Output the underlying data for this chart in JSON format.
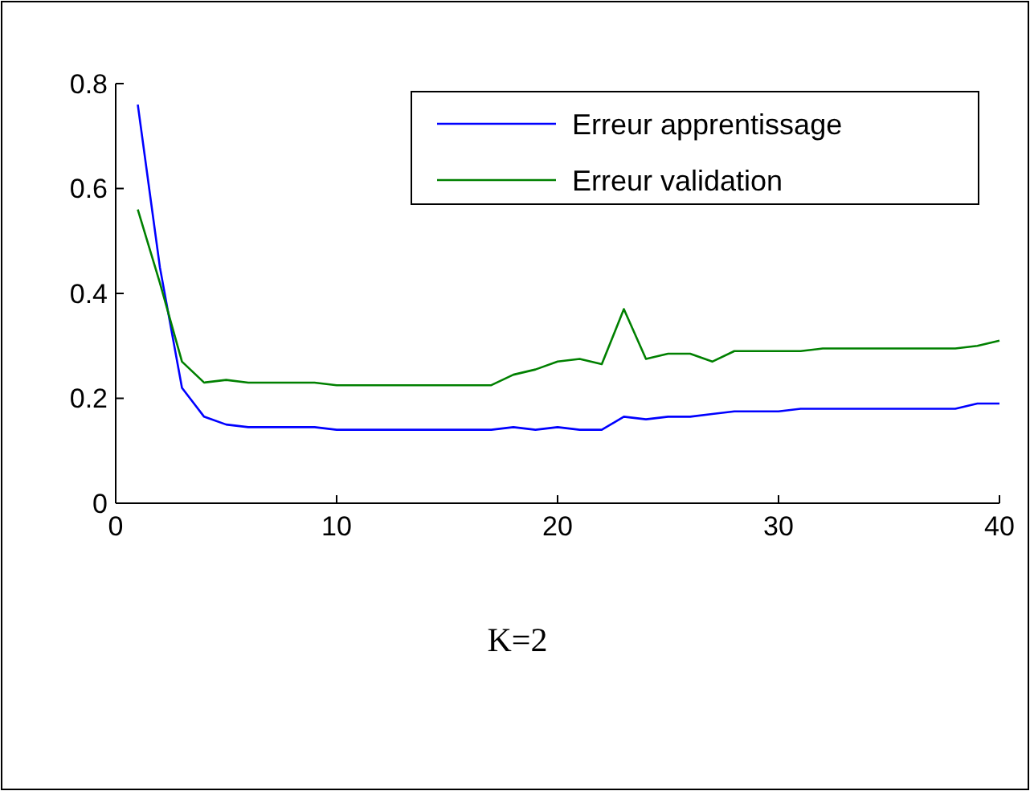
{
  "chart_data": {
    "type": "line",
    "x": [
      1,
      2,
      3,
      4,
      5,
      6,
      7,
      8,
      9,
      10,
      11,
      12,
      13,
      14,
      15,
      16,
      17,
      18,
      19,
      20,
      21,
      22,
      23,
      24,
      25,
      26,
      27,
      28,
      29,
      30,
      31,
      32,
      33,
      34,
      35,
      36,
      37,
      38,
      39,
      40
    ],
    "series": [
      {
        "name": "Erreur apprentissage",
        "color": "#0000ff",
        "values": [
          0.76,
          0.45,
          0.22,
          0.165,
          0.15,
          0.145,
          0.145,
          0.145,
          0.145,
          0.14,
          0.14,
          0.14,
          0.14,
          0.14,
          0.14,
          0.14,
          0.14,
          0.145,
          0.14,
          0.145,
          0.14,
          0.14,
          0.165,
          0.16,
          0.165,
          0.165,
          0.17,
          0.175,
          0.175,
          0.175,
          0.18,
          0.18,
          0.18,
          0.18,
          0.18,
          0.18,
          0.18,
          0.18,
          0.19,
          0.19
        ]
      },
      {
        "name": "Erreur validation",
        "color": "#008000",
        "values": [
          0.56,
          0.42,
          0.27,
          0.23,
          0.235,
          0.23,
          0.23,
          0.23,
          0.23,
          0.225,
          0.225,
          0.225,
          0.225,
          0.225,
          0.225,
          0.225,
          0.225,
          0.245,
          0.255,
          0.27,
          0.275,
          0.265,
          0.37,
          0.275,
          0.285,
          0.285,
          0.27,
          0.29,
          0.29,
          0.29,
          0.29,
          0.295,
          0.295,
          0.295,
          0.295,
          0.295,
          0.295,
          0.295,
          0.3,
          0.31
        ]
      }
    ],
    "xlim": [
      0,
      40
    ],
    "xticks": [
      0,
      10,
      20,
      30,
      40
    ],
    "ylim": [
      0,
      0.8
    ],
    "yticks": [
      0,
      0.2,
      0.4,
      0.6,
      0.8
    ],
    "grid": false,
    "legend": "top right",
    "marker": "none",
    "line_style": "solid",
    "annotations": [
      "K=2"
    ]
  }
}
